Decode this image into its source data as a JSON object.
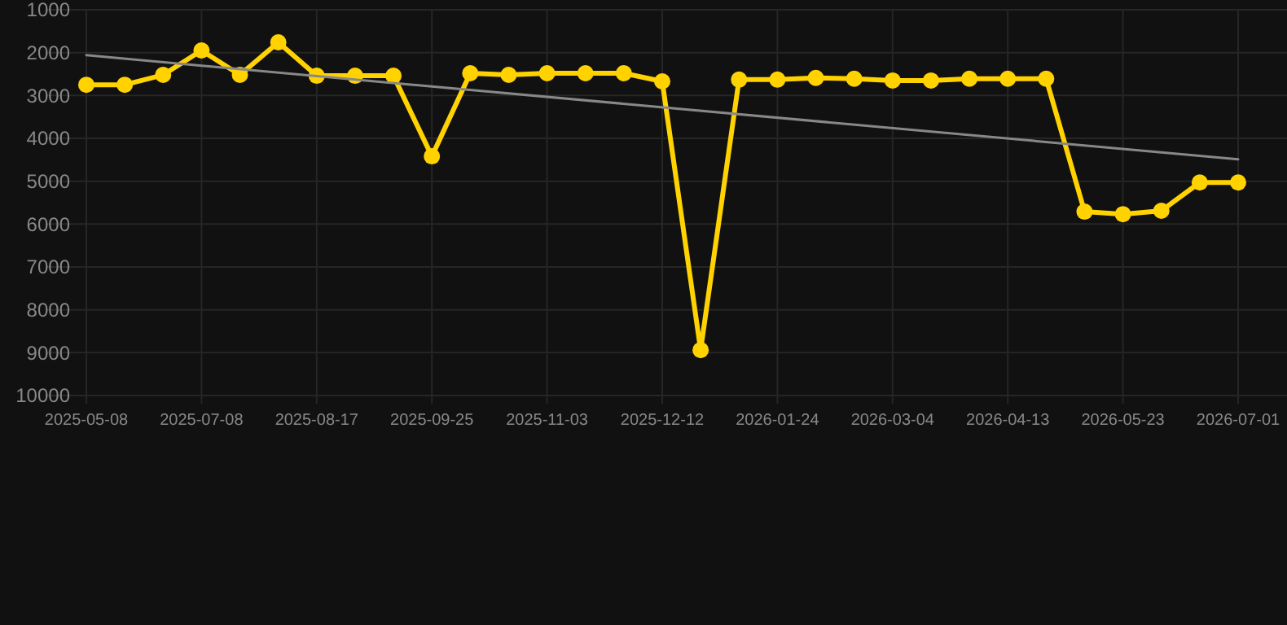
{
  "chart_data": {
    "type": "line",
    "categories": [
      "2025-05-08",
      null,
      null,
      "2025-07-08",
      null,
      null,
      "2025-08-17",
      null,
      null,
      "2025-09-25",
      null,
      null,
      "2025-11-03",
      null,
      null,
      "2025-12-12",
      null,
      null,
      "2026-01-24",
      null,
      null,
      "2026-03-04",
      null,
      null,
      "2026-04-13",
      null,
      null,
      "2026-05-23",
      null,
      null,
      "2026-07-01"
    ],
    "series": [
      {
        "color": "#ffd200",
        "marker": "circle",
        "values": [
          2750,
          2750,
          2520,
          1950,
          2520,
          1760,
          2540,
          2540,
          2540,
          4420,
          2480,
          2520,
          2480,
          2480,
          2480,
          2670,
          8940,
          2630,
          2630,
          2590,
          2610,
          2650,
          2650,
          2610,
          2610,
          2610,
          5710,
          5770,
          5690,
          5030,
          5030
        ]
      },
      {
        "type": "line",
        "color": "#888888",
        "marker": "none",
        "values": [
          2060,
          null,
          null,
          null,
          null,
          null,
          null,
          null,
          null,
          null,
          null,
          null,
          null,
          null,
          null,
          null,
          null,
          null,
          null,
          null,
          null,
          null,
          null,
          null,
          null,
          null,
          null,
          null,
          null,
          null,
          4490
        ]
      }
    ],
    "ylim": [
      10000,
      1000
    ],
    "yticks": [
      1000,
      2000,
      3000,
      4000,
      5000,
      6000,
      7000,
      8000,
      9000,
      10000
    ],
    "grid": true,
    "line_style": "solid"
  }
}
